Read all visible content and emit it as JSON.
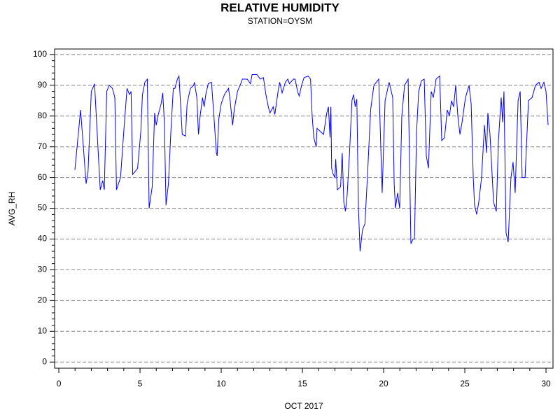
{
  "chart_data": {
    "type": "line",
    "title": "RELATIVE HUMIDITY",
    "subtitle": "STATION=OYSM",
    "x_label": "OCT 2017",
    "y_label": "AVG_RH",
    "color": "#0000ff",
    "grid": true,
    "xlim": [
      -0.26,
      30.43
    ],
    "ylim": [
      -2,
      101.8
    ],
    "xticks": [
      0,
      5,
      10,
      15,
      20,
      25,
      30
    ],
    "yticks": [
      0,
      10,
      20,
      30,
      40,
      50,
      60,
      70,
      80,
      90,
      100
    ],
    "x": [
      0.99,
      1.34,
      1.68,
      1.8,
      2.0,
      2.2,
      2.55,
      2.7,
      2.8,
      2.95,
      3.1,
      3.3,
      3.45,
      3.55,
      3.8,
      4.0,
      4.2,
      4.35,
      4.45,
      4.55,
      4.85,
      5.05,
      5.15,
      5.3,
      5.45,
      5.56,
      5.75,
      5.9,
      6.0,
      6.1,
      6.3,
      6.4,
      6.5,
      6.6,
      6.75,
      6.9,
      7.05,
      7.15,
      7.3,
      7.4,
      7.6,
      7.8,
      7.9,
      8.1,
      8.3,
      8.35,
      8.5,
      8.6,
      8.7,
      8.85,
      8.95,
      9.05,
      9.2,
      9.4,
      9.55,
      9.7,
      9.75,
      9.85,
      10.0,
      10.2,
      10.45,
      10.55,
      10.7,
      10.8,
      11.0,
      11.2,
      11.3,
      11.6,
      11.8,
      11.9,
      12.2,
      12.4,
      12.6,
      12.75,
      12.9,
      13.0,
      13.2,
      13.3,
      13.5,
      13.6,
      13.75,
      13.95,
      14.1,
      14.2,
      14.45,
      14.55,
      14.7,
      14.8,
      14.95,
      15.1,
      15.35,
      15.5,
      15.55,
      15.6,
      15.7,
      15.85,
      15.9,
      16.1,
      16.3,
      16.5,
      16.6,
      16.7,
      16.75,
      16.8,
      16.9,
      17.0,
      17.05,
      17.15,
      17.35,
      17.45,
      17.55,
      17.65,
      17.75,
      17.9,
      18.05,
      18.15,
      18.25,
      18.35,
      18.45,
      18.55,
      18.7,
      18.85,
      19.0,
      19.2,
      19.4,
      19.7,
      19.91,
      20.09,
      20.34,
      20.56,
      20.65,
      20.73,
      20.86,
      20.99,
      21.12,
      21.29,
      21.51,
      21.68,
      21.81,
      21.9,
      22.03,
      22.16,
      22.33,
      22.5,
      22.63,
      22.76,
      22.93,
      23.06,
      23.23,
      23.45,
      23.58,
      23.75,
      23.92,
      24.05,
      24.18,
      24.31,
      24.44,
      24.57,
      24.7,
      24.83,
      25.04,
      25.26,
      25.39,
      25.52,
      25.6,
      25.73,
      25.86,
      26.03,
      26.21,
      26.34,
      26.42,
      26.55,
      26.77,
      26.94,
      27.07,
      27.24,
      27.33,
      27.41,
      27.54,
      27.67,
      27.84,
      27.97,
      28.1,
      28.28,
      28.41,
      28.53,
      28.71,
      28.92,
      29.14,
      29.35,
      29.57,
      29.7,
      29.87,
      30.0,
      30.13
    ],
    "values": [
      62.5,
      82,
      58,
      62,
      88,
      90.5,
      56,
      59,
      56,
      88,
      90,
      89,
      86,
      56,
      60,
      75,
      89,
      87,
      88,
      61,
      63,
      75,
      87,
      91,
      92,
      50,
      57,
      81,
      77,
      80,
      84,
      87.5,
      78,
      51,
      58,
      75,
      89,
      89,
      92,
      93,
      74,
      73.5,
      84,
      89,
      90,
      91,
      86,
      74,
      80,
      86,
      83,
      87,
      90.5,
      91,
      80,
      68,
      67,
      79,
      84,
      87,
      89,
      85,
      77,
      82,
      88,
      90.5,
      92,
      92,
      90.5,
      93.5,
      93.5,
      92,
      92.5,
      87,
      83,
      81,
      83,
      80.5,
      88,
      91,
      87.5,
      91,
      92,
      90.5,
      92,
      92,
      88,
      86.5,
      90,
      92.5,
      93,
      92,
      86,
      80,
      73,
      70,
      76,
      75,
      74,
      81,
      83,
      73,
      83,
      63,
      61,
      60,
      66,
      56,
      57,
      68,
      52,
      49,
      54,
      68,
      85,
      87,
      83,
      85.5,
      50,
      36,
      43,
      45,
      60,
      82,
      90,
      92,
      55,
      85,
      91,
      86,
      58,
      50,
      55,
      50,
      80,
      90,
      92,
      38.5,
      40,
      40,
      75,
      88,
      91.5,
      92,
      67,
      63,
      88,
      86,
      92,
      93,
      72,
      73,
      82,
      80,
      85,
      83,
      90,
      80,
      74,
      78,
      86,
      90,
      84,
      60,
      51,
      48,
      52,
      60,
      77,
      68,
      81,
      74,
      52,
      49,
      72,
      86,
      78,
      88,
      42,
      39,
      60,
      65,
      55,
      85,
      88,
      60,
      60,
      85,
      86,
      90,
      91,
      89,
      91,
      88,
      77
    ]
  }
}
